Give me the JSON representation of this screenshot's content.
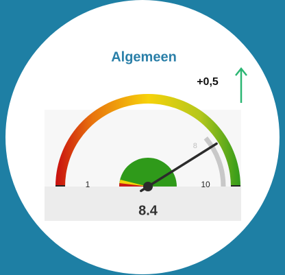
{
  "chart_data": {
    "type": "gauge",
    "title": "Algemeen",
    "value": 8.4,
    "ylim": [
      1,
      10
    ],
    "yticks": [
      1,
      10
    ],
    "target": 8,
    "annotations": [
      "+0,5"
    ]
  }
}
